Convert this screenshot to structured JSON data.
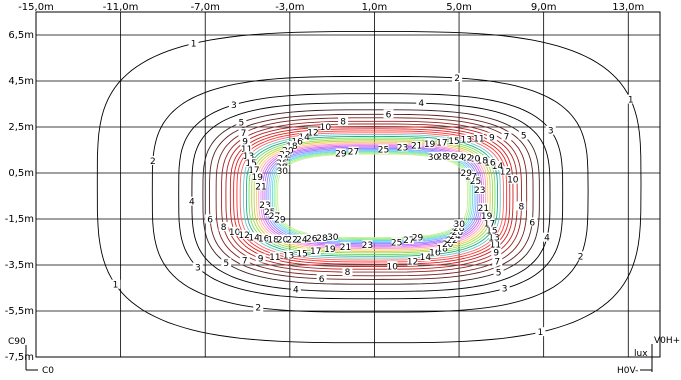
{
  "chart_data": {
    "type": "contour",
    "title": "",
    "xlabel": "",
    "ylabel": "",
    "x_ticks": [
      "-15,0m",
      "-11,0m",
      "-7,0m",
      "-3,0m",
      "1,0m",
      "5,0m",
      "9,0m",
      "13,0m"
    ],
    "y_ticks": [
      "6,5m",
      "4,5m",
      "2,5m",
      "0,5m",
      "-1,5m",
      "-3,5m",
      "-5,5m",
      "-7,5m"
    ],
    "xlim": [
      -15,
      14.5
    ],
    "ylim": [
      -7.5,
      7.5
    ],
    "grid": true,
    "unit": "lux",
    "corner_labels": {
      "c90": "C90",
      "c0": "C0",
      "v0h_plus": "V0H+",
      "h0v_minus": "H0V-",
      "unit": "lux"
    },
    "contour_levels": [
      {
        "label": "1",
        "color": "#000000",
        "rx": 12.6,
        "ry": 6.6,
        "cy": 0.05
      },
      {
        "label": "2",
        "color": "#000000",
        "rx": 10.1,
        "ry": 5.0,
        "cy": -0.3
      },
      {
        "label": "3",
        "color": "#000000",
        "rx": 8.9,
        "ry": 4.35,
        "cy": -0.4
      },
      {
        "label": "4",
        "color": "#000000",
        "rx": 8.3,
        "ry": 4.0,
        "cy": -0.45
      },
      {
        "label": "5",
        "color": "#3a1f1f",
        "rx": 7.8,
        "ry": 3.7,
        "cy": -0.45
      },
      {
        "label": "6",
        "color": "#5a1f1f",
        "rx": 7.5,
        "ry": 3.5,
        "cy": -0.45
      },
      {
        "label": "7",
        "color": "#7a2020",
        "rx": 7.2,
        "ry": 3.35,
        "cy": -0.45
      },
      {
        "label": "8",
        "color": "#992222",
        "rx": 6.95,
        "ry": 3.2,
        "cy": -0.45
      },
      {
        "label": "9",
        "color": "#b52222",
        "rx": 6.75,
        "ry": 3.08,
        "cy": -0.45
      },
      {
        "label": "10",
        "color": "#cc2020",
        "rx": 6.55,
        "ry": 2.97,
        "cy": -0.45
      },
      {
        "label": "11",
        "color": "#e02020",
        "rx": 6.4,
        "ry": 2.87,
        "cy": -0.45
      },
      {
        "label": "12",
        "color": "#ff3030",
        "rx": 6.25,
        "ry": 2.78,
        "cy": -0.45
      },
      {
        "label": "13",
        "color": "#ff6666",
        "rx": 6.1,
        "ry": 2.7,
        "cy": -0.45
      },
      {
        "label": "14",
        "color": "#66cccc",
        "rx": 5.95,
        "ry": 2.62,
        "cy": -0.45
      },
      {
        "label": "15",
        "color": "#22aa88",
        "rx": 5.82,
        "ry": 2.54,
        "cy": -0.45
      },
      {
        "label": "16",
        "color": "#77dd66",
        "rx": 5.7,
        "ry": 2.47,
        "cy": -0.45
      },
      {
        "label": "17",
        "color": "#99dd44",
        "rx": 5.58,
        "ry": 2.4,
        "cy": -0.45
      },
      {
        "label": "18",
        "color": "#cccc44",
        "rx": 5.47,
        "ry": 2.34,
        "cy": -0.45
      },
      {
        "label": "19",
        "color": "#ffcc66",
        "rx": 5.36,
        "ry": 2.28,
        "cy": -0.45
      },
      {
        "label": "20",
        "color": "#ff99cc",
        "rx": 5.26,
        "ry": 2.22,
        "cy": -0.45
      },
      {
        "label": "21",
        "color": "#ee88ee",
        "rx": 5.16,
        "ry": 2.17,
        "cy": -0.45
      },
      {
        "label": "22",
        "color": "#cc66ee",
        "rx": 5.07,
        "ry": 2.12,
        "cy": -0.45
      },
      {
        "label": "23",
        "color": "#aa77ff",
        "rx": 4.98,
        "ry": 2.07,
        "cy": -0.45
      },
      {
        "label": "24",
        "color": "#8888ff",
        "rx": 4.89,
        "ry": 2.02,
        "cy": -0.45
      },
      {
        "label": "25",
        "color": "#88aaff",
        "rx": 4.8,
        "ry": 1.97,
        "cy": -0.45
      },
      {
        "label": "26",
        "color": "#88ccff",
        "rx": 4.72,
        "ry": 1.93,
        "cy": -0.45
      },
      {
        "label": "27",
        "color": "#66dddd",
        "rx": 4.64,
        "ry": 1.89,
        "cy": -0.45
      },
      {
        "label": "28",
        "color": "#88eeaa",
        "rx": 4.56,
        "ry": 1.85,
        "cy": -0.45
      },
      {
        "label": "29",
        "color": "#aaee88",
        "rx": 4.48,
        "ry": 1.81,
        "cy": -0.45
      },
      {
        "label": "30",
        "color": "#ccee99",
        "rx": 4.4,
        "ry": 1.77,
        "cy": -0.45
      }
    ]
  }
}
